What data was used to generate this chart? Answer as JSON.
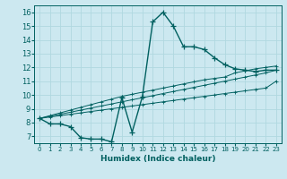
{
  "xlabel": "Humidex (Indice chaleur)",
  "bg_color": "#cce8f0",
  "grid_color": "#b0d8e0",
  "line_color": "#006060",
  "xlim": [
    -0.5,
    23.5
  ],
  "ylim": [
    6.5,
    16.5
  ],
  "xticks": [
    0,
    1,
    2,
    3,
    4,
    5,
    6,
    7,
    8,
    9,
    10,
    11,
    12,
    13,
    14,
    15,
    16,
    17,
    18,
    19,
    20,
    21,
    22,
    23
  ],
  "yticks": [
    7,
    8,
    9,
    10,
    11,
    12,
    13,
    14,
    15,
    16
  ],
  "series1_x": [
    0,
    1,
    2,
    3,
    4,
    5,
    6,
    7,
    8,
    9,
    10,
    11,
    12,
    13,
    14,
    15,
    16,
    17,
    18,
    19,
    20,
    21,
    22,
    23
  ],
  "series1_y": [
    8.3,
    7.9,
    7.9,
    7.7,
    6.9,
    6.8,
    6.8,
    6.6,
    9.8,
    7.3,
    9.9,
    15.3,
    16.0,
    15.0,
    13.5,
    13.5,
    13.3,
    12.7,
    12.2,
    11.9,
    11.8,
    11.7,
    11.8,
    11.8
  ],
  "trend1_x": [
    0,
    1,
    2,
    3,
    4,
    5,
    6,
    7,
    8,
    9,
    10,
    11,
    12,
    13,
    14,
    15,
    16,
    17,
    18,
    19,
    20,
    21,
    22,
    23
  ],
  "trend1_y": [
    8.3,
    8.4,
    8.5,
    8.6,
    8.7,
    8.8,
    8.9,
    9.0,
    9.1,
    9.2,
    9.3,
    9.4,
    9.5,
    9.6,
    9.7,
    9.8,
    9.9,
    10.0,
    10.1,
    10.2,
    10.3,
    10.4,
    10.5,
    11.0
  ],
  "trend2_x": [
    0,
    1,
    2,
    3,
    4,
    5,
    6,
    7,
    8,
    9,
    10,
    11,
    12,
    13,
    14,
    15,
    16,
    17,
    18,
    19,
    20,
    21,
    22,
    23
  ],
  "trend2_y": [
    8.3,
    8.45,
    8.6,
    8.75,
    8.9,
    9.05,
    9.2,
    9.35,
    9.5,
    9.65,
    9.8,
    9.95,
    10.1,
    10.25,
    10.4,
    10.55,
    10.7,
    10.85,
    11.0,
    11.15,
    11.3,
    11.45,
    11.6,
    11.8
  ],
  "trend3_x": [
    0,
    1,
    2,
    3,
    4,
    5,
    6,
    7,
    8,
    9,
    10,
    11,
    12,
    13,
    14,
    15,
    16,
    17,
    18,
    19,
    20,
    21,
    22,
    23
  ],
  "trend3_y": [
    8.3,
    8.5,
    8.7,
    8.9,
    9.1,
    9.3,
    9.5,
    9.7,
    9.9,
    10.05,
    10.2,
    10.35,
    10.5,
    10.65,
    10.8,
    10.95,
    11.1,
    11.2,
    11.3,
    11.6,
    11.75,
    11.9,
    12.0,
    12.1
  ]
}
